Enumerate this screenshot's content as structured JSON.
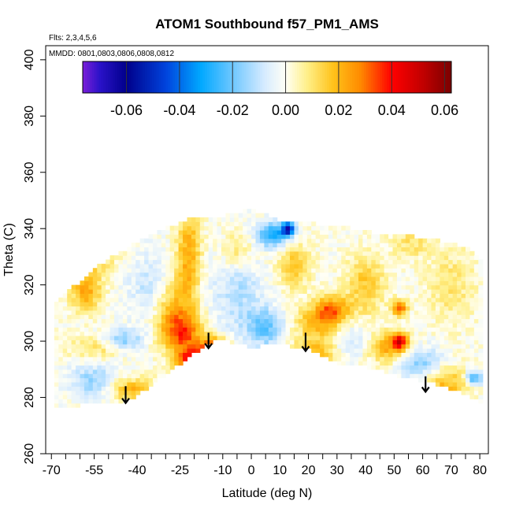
{
  "chart_data": {
    "type": "heatmap",
    "title": "ATOM1 Southbound f57_PM1_AMS",
    "annotations": [
      "Flts: 2,3,4,5,6",
      "MMDD: 0801,0803,0806,0808,0812"
    ],
    "xlabel": "Latitude (deg N)",
    "ylabel": "Theta (C)",
    "xlim": [
      -72,
      83
    ],
    "ylim": [
      260,
      405
    ],
    "x_ticks": [
      -70,
      -55,
      -40,
      -25,
      -10,
      0,
      10,
      20,
      30,
      40,
      50,
      60,
      70,
      80
    ],
    "x_minor_ticks": [
      -65,
      -60,
      -50,
      -45,
      -35,
      -30,
      -20,
      -15,
      -5,
      5,
      15,
      25,
      35,
      45,
      55,
      65,
      75
    ],
    "y_ticks": [
      260,
      280,
      300,
      320,
      340,
      360,
      380,
      400
    ],
    "colorbar": {
      "range": [
        -0.0765,
        0.0625
      ],
      "ticks": [
        -0.06,
        -0.04,
        -0.02,
        0.0,
        0.02,
        0.04,
        0.06
      ],
      "tick_labels": [
        "-0.06",
        "-0.04",
        "-0.02",
        "0.00",
        "0.02",
        "0.04",
        "0.06"
      ],
      "color_stops": [
        {
          "v": -0.0765,
          "c": "#7a1fd9"
        },
        {
          "v": -0.07,
          "c": "#2a12c8"
        },
        {
          "v": -0.06,
          "c": "#00008b"
        },
        {
          "v": -0.045,
          "c": "#0044dd"
        },
        {
          "v": -0.032,
          "c": "#00a8ff"
        },
        {
          "v": -0.02,
          "c": "#6ec7ff"
        },
        {
          "v": -0.008,
          "c": "#d6ebff"
        },
        {
          "v": 0.0,
          "c": "#fffff5"
        },
        {
          "v": 0.008,
          "c": "#fff08a"
        },
        {
          "v": 0.018,
          "c": "#ffc21a"
        },
        {
          "v": 0.028,
          "c": "#ff8c00"
        },
        {
          "v": 0.04,
          "c": "#ff0000"
        },
        {
          "v": 0.052,
          "c": "#c00000"
        },
        {
          "v": 0.0625,
          "c": "#7a0000"
        }
      ]
    },
    "envelope": {
      "lat": [
        -69,
        -55,
        -42,
        -30,
        -20,
        -13,
        -8,
        0,
        10,
        20,
        30,
        40,
        50,
        60,
        70,
        76,
        80
      ],
      "theta_min": [
        276,
        278,
        279,
        288,
        296,
        300,
        300,
        298,
        299,
        297,
        292,
        291,
        288,
        286,
        283,
        281,
        278
      ],
      "theta_max": [
        313,
        326,
        334,
        340,
        344,
        344,
        345,
        347,
        343,
        342,
        341,
        339,
        338,
        337,
        335,
        333,
        329
      ]
    },
    "features": [
      {
        "lat": -20,
        "theta": 292,
        "value": 0.05,
        "sigma_lat": 4,
        "sigma_theta": 4
      },
      {
        "lat": -13,
        "theta": 297,
        "value": 0.04,
        "sigma_lat": 3,
        "sigma_theta": 3
      },
      {
        "lat": -24,
        "theta": 303,
        "value": 0.028,
        "sigma_lat": 5,
        "sigma_theta": 5
      },
      {
        "lat": -22,
        "theta": 330,
        "value": 0.022,
        "sigma_lat": 3,
        "sigma_theta": 14
      },
      {
        "lat": -28,
        "theta": 312,
        "value": 0.018,
        "sigma_lat": 4,
        "sigma_theta": 8
      },
      {
        "lat": -55,
        "theta": 332,
        "value": 0.018,
        "sigma_lat": 5,
        "sigma_theta": 5
      },
      {
        "lat": -58,
        "theta": 318,
        "value": 0.022,
        "sigma_lat": 4,
        "sigma_theta": 5
      },
      {
        "lat": -42,
        "theta": 283,
        "value": 0.02,
        "sigma_lat": 6,
        "sigma_theta": 3
      },
      {
        "lat": -52,
        "theta": 298,
        "value": 0.014,
        "sigma_lat": 8,
        "sigma_theta": 3
      },
      {
        "lat": -45,
        "theta": 300,
        "value": -0.022,
        "sigma_lat": 5,
        "sigma_theta": 3
      },
      {
        "lat": -55,
        "theta": 286,
        "value": -0.016,
        "sigma_lat": 6,
        "sigma_theta": 4
      },
      {
        "lat": -35,
        "theta": 320,
        "value": -0.01,
        "sigma_lat": 6,
        "sigma_theta": 8
      },
      {
        "lat": -5,
        "theta": 318,
        "value": -0.012,
        "sigma_lat": 6,
        "sigma_theta": 10
      },
      {
        "lat": 5,
        "theta": 305,
        "value": -0.02,
        "sigma_lat": 5,
        "sigma_theta": 5
      },
      {
        "lat": 8,
        "theta": 338,
        "value": -0.032,
        "sigma_lat": 4,
        "sigma_theta": 3
      },
      {
        "lat": 13,
        "theta": 340,
        "value": -0.055,
        "sigma_lat": 1.5,
        "sigma_theta": 1.5
      },
      {
        "lat": -5,
        "theta": 332,
        "value": 0.012,
        "sigma_lat": 4,
        "sigma_theta": 5
      },
      {
        "lat": 15,
        "theta": 327,
        "value": 0.016,
        "sigma_lat": 4,
        "sigma_theta": 6
      },
      {
        "lat": 25,
        "theta": 307,
        "value": 0.022,
        "sigma_lat": 7,
        "sigma_theta": 4
      },
      {
        "lat": 28,
        "theta": 312,
        "value": 0.024,
        "sigma_lat": 4,
        "sigma_theta": 3
      },
      {
        "lat": 22,
        "theta": 296,
        "value": 0.018,
        "sigma_lat": 6,
        "sigma_theta": 4
      },
      {
        "lat": 35,
        "theta": 302,
        "value": -0.012,
        "sigma_lat": 5,
        "sigma_theta": 5
      },
      {
        "lat": 40,
        "theta": 320,
        "value": 0.016,
        "sigma_lat": 5,
        "sigma_theta": 8
      },
      {
        "lat": 48,
        "theta": 298,
        "value": 0.022,
        "sigma_lat": 5,
        "sigma_theta": 4
      },
      {
        "lat": 52,
        "theta": 300,
        "value": 0.035,
        "sigma_lat": 2,
        "sigma_theta": 2
      },
      {
        "lat": 52,
        "theta": 312,
        "value": 0.03,
        "sigma_lat": 2,
        "sigma_theta": 2
      },
      {
        "lat": 60,
        "theta": 292,
        "value": -0.018,
        "sigma_lat": 6,
        "sigma_theta": 4
      },
      {
        "lat": 68,
        "theta": 285,
        "value": 0.02,
        "sigma_lat": 6,
        "sigma_theta": 5
      },
      {
        "lat": 78,
        "theta": 287,
        "value": -0.028,
        "sigma_lat": 2,
        "sigma_theta": 2
      },
      {
        "lat": 70,
        "theta": 320,
        "value": 0.01,
        "sigma_lat": 6,
        "sigma_theta": 10
      },
      {
        "lat": 56,
        "theta": 335,
        "value": 0.01,
        "sigma_lat": 5,
        "sigma_theta": 4
      }
    ],
    "arrows": [
      {
        "lat": -44,
        "theta_top": 284,
        "theta_tip": 278
      },
      {
        "lat": -15,
        "theta_top": 303,
        "theta_tip": 297.5
      },
      {
        "lat": 19,
        "theta_top": 303,
        "theta_tip": 296.5
      },
      {
        "lat": 61,
        "theta_top": 287.5,
        "theta_tip": 282
      }
    ]
  }
}
